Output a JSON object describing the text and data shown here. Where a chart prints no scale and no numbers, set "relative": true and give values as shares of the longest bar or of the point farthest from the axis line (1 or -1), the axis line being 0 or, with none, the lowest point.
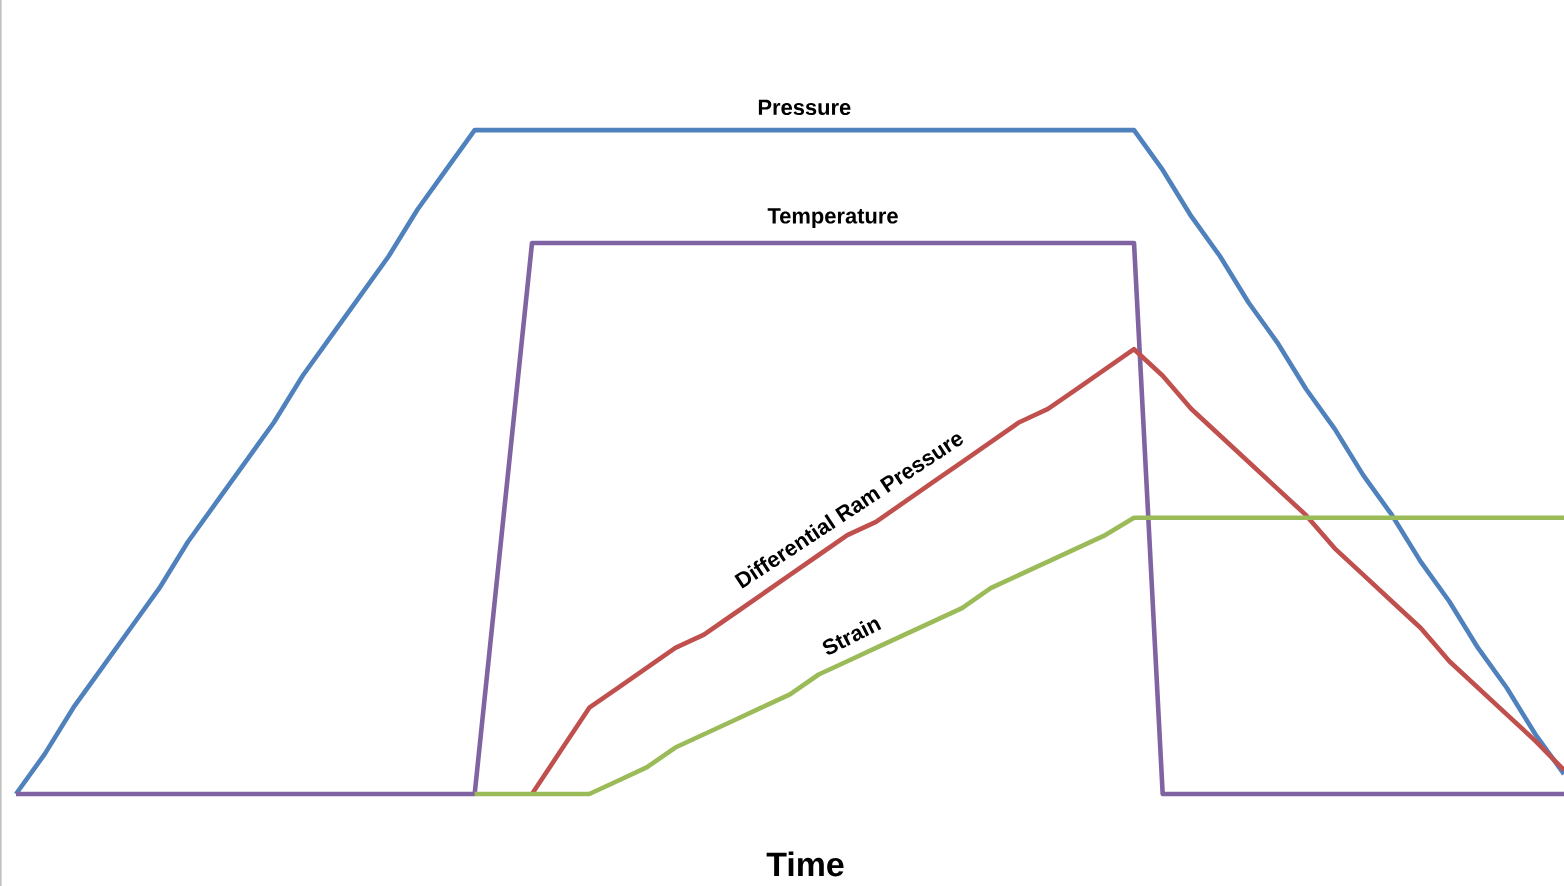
{
  "chart_data": {
    "type": "line",
    "relative": true,
    "xlabel": "Time",
    "categories": [
      null,
      null,
      null,
      null,
      null,
      null,
      null,
      null,
      null,
      null,
      null,
      null,
      null,
      null,
      null,
      null,
      null,
      null,
      null,
      null,
      null,
      null,
      null,
      null,
      null,
      null,
      null,
      null,
      null,
      null,
      null,
      null,
      null,
      null,
      null,
      null,
      null,
      null,
      null,
      null,
      null,
      null,
      null,
      null,
      null,
      null,
      null,
      null,
      null,
      null,
      null,
      null,
      null,
      null,
      null
    ],
    "series": [
      {
        "name": "Pressure",
        "color": "#4f81bd",
        "values": [
          0,
          0.06,
          0.13,
          0.19,
          0.25,
          0.31,
          0.38,
          0.44,
          0.5,
          0.56,
          0.63,
          0.69,
          0.75,
          0.81,
          0.88,
          0.94,
          1,
          1,
          1,
          1,
          1,
          1,
          1,
          1,
          1,
          1,
          1,
          1,
          1,
          1,
          1,
          1,
          1,
          1,
          1,
          1,
          1,
          1,
          1,
          1,
          0.94,
          0.87,
          0.81,
          0.74,
          0.68,
          0.61,
          0.55,
          0.48,
          0.42,
          0.35,
          0.29,
          0.22,
          0.16,
          0.09,
          0.03
        ]
      },
      {
        "name": "Temperature",
        "color": "#8064a2",
        "values": [
          0,
          0,
          0,
          0,
          0,
          0,
          0,
          0,
          0,
          0,
          0,
          0,
          0,
          0,
          0,
          0,
          0,
          0.415,
          0.83,
          0.83,
          0.83,
          0.83,
          0.83,
          0.83,
          0.83,
          0.83,
          0.83,
          0.83,
          0.83,
          0.83,
          0.83,
          0.83,
          0.83,
          0.83,
          0.83,
          0.83,
          0.83,
          0.83,
          0.83,
          0.83,
          0,
          0,
          0,
          0,
          0,
          0,
          0,
          0,
          0,
          0,
          0,
          0,
          0,
          0,
          0
        ]
      },
      {
        "name": "Differential Ram Pressure",
        "color": "#c0504d",
        "values": [
          null,
          null,
          null,
          null,
          null,
          null,
          null,
          null,
          null,
          null,
          null,
          null,
          null,
          null,
          null,
          null,
          null,
          null,
          0,
          0.065,
          0.13,
          0.16,
          0.19,
          0.22,
          0.24,
          0.27,
          0.3,
          0.33,
          0.36,
          0.39,
          0.41,
          0.44,
          0.47,
          0.5,
          0.53,
          0.56,
          0.58,
          0.61,
          0.64,
          0.67,
          0.63,
          0.58,
          0.54,
          0.5,
          0.46,
          0.42,
          0.37,
          0.33,
          0.29,
          0.25,
          0.2,
          0.16,
          0.12,
          0.08,
          0.036
        ]
      },
      {
        "name": "Strain",
        "color": "#9bbb59",
        "values": [
          null,
          null,
          null,
          null,
          null,
          null,
          null,
          null,
          null,
          null,
          null,
          null,
          null,
          null,
          null,
          null,
          0,
          0,
          0,
          0,
          0,
          0.02,
          0.04,
          0.07,
          0.09,
          0.11,
          0.13,
          0.15,
          0.18,
          0.2,
          0.22,
          0.24,
          0.26,
          0.28,
          0.31,
          0.33,
          0.35,
          0.37,
          0.39,
          0.416,
          0.416,
          0.416,
          0.416,
          0.416,
          0.416,
          0.416,
          0.416,
          0.416,
          0.416,
          0.416,
          0.416,
          0.416,
          0.416,
          0.416,
          0.416
        ]
      }
    ]
  }
}
